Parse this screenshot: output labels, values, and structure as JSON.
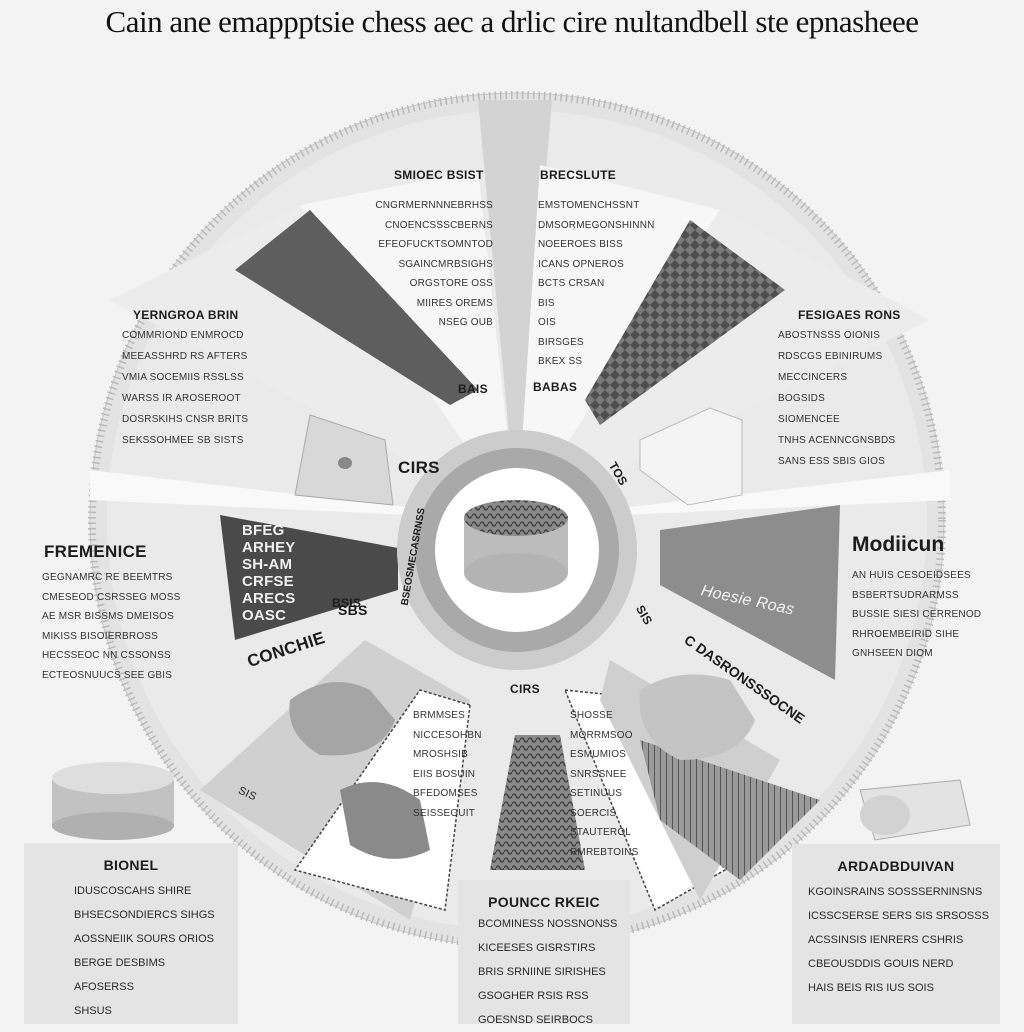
{
  "title": "Cain ane emappptsie chess aec a drlic cire nultandbell ste epnasheee",
  "colors": {
    "bg": "#f3f3f3",
    "ring": "#e2e2e2",
    "dark": "#5a5a5a",
    "mid": "#9a9a9a",
    "light": "#d4d4d4"
  },
  "segments": {
    "top_left": {
      "label": "SMIOEC BSIST",
      "lines": [
        "CNGRMERNNNEBRHSS",
        "CNOENCSSSCBERNS",
        "EFEOFUCKTSOMNTOD",
        "SGAINCMRBSIGHS",
        "ORGSTORE OSS",
        "MIIRES OREMS",
        "NSEG OUB"
      ],
      "tag": "BAIS"
    },
    "top_right": {
      "label": "BRECSLUTE",
      "lines": [
        "EMSTOMENCHSSNT",
        "DMSORMEGONSHINNN",
        "NOEEROES BISS",
        "ICANS OPNEROS",
        "BCTS CRSAN",
        "BIS",
        "OIS",
        "BIRSGES",
        "BKEX SS"
      ],
      "tag": "BABAS"
    },
    "upper_left": {
      "label": "YERNGROA BRIN",
      "lines": [
        "COMMRIOND ENMROCD",
        "MEEASSHRD RS AFTERS",
        "VMIA SOCEMIIS RSSLSS",
        "WARSS IR AROSEROOT",
        "DOSRSKIHS CNSR BRITS",
        "SEKSSOHMEE SB SISTS"
      ],
      "tag": "CIRS"
    },
    "upper_right": {
      "label": "FESIGAES RONS",
      "lines": [
        "ABOSTNSSS OIONIS",
        "RDSCGS EBINIRUMS",
        "MECCINCERS",
        "BOGSIDS",
        "SIOMENCEE",
        "TNHS ACENNCGNSBDS",
        "SANS ESS SBIS GIOS"
      ],
      "tag": "TOS"
    },
    "left": {
      "label": "FREMENICE",
      "lines": [
        "GEGNAMRC RE BEEMTRS",
        "CMESEOD CSRSSEG MOSS",
        "AE MSR BISSMS DMEISOS",
        "MIKISS BISOIERBROSS",
        "HECSSEOC NN CSSONSS",
        "ECTEOSNUUCS SEE GBIS"
      ],
      "chalk": [
        "BFEG",
        "ARHEY",
        "SH-AM",
        "CRFSE",
        "ARECS",
        "OASC"
      ]
    },
    "right": {
      "label": "Modiicun",
      "lines": [
        "AN HUIS CESOEIDSEES",
        "BSBERTSUDRARMSS",
        "BUSSIE SIESI CERRENOD",
        "RHROEMBEIRID SIHE",
        "GNHSEEN DIOM"
      ],
      "tag": "C DASRONSSSOCNE",
      "script": "Hoesie Roas"
    },
    "bottom_left": {
      "label": "CONCHIE",
      "tag": "BSIS"
    },
    "bottom_center": {
      "tag": "CIRS"
    },
    "bottom_right": {
      "tag": "SIS"
    },
    "receipt_left": [
      "BRMMSES",
      "NICCESOHBN",
      "MROSHSIB",
      "EIIS BOSUIN",
      "BFEDOMSES",
      "SEISSEGUIT"
    ],
    "receipt_right": [
      "SHOSSE",
      "MORRMSOO",
      "ESMUMIOS",
      "SNRSSNEE",
      "SETINUUS",
      "SOERCIS",
      "STAUTEROL",
      "RMREBTOINS"
    ]
  },
  "ring_labels": {
    "left_vertical": "BSEOSMECASRNSS",
    "right_small": "SIS",
    "bottom_small": "SBS"
  },
  "boxes": {
    "left": {
      "title": "BIONEL",
      "lines": [
        "IDUSCOSCAHS SHIRE",
        "BHSECSONDIERCS SIHGS",
        "AOSSNEIIK SOURS ORIOS",
        "BERGE DESBIMS",
        "AFOSERSS",
        "SHSUS"
      ]
    },
    "center": {
      "title": "POUNCC RKEIC",
      "lines": [
        "BCOMINESS NOSSNONSS",
        "KICEESES GISRSTIRS",
        "BRIS SRNIINE SIRISHES",
        "GSOGHER RSIS RSS",
        "GOESNSD SEIRBOCS"
      ]
    },
    "right": {
      "title": "ARDADBDUIVAN",
      "lines": [
        "KGOINSRAINS SOSSSERNINSNS",
        "ICSSCSERSE SERS SIS SRSOSSS",
        "ACSSINSIS IENRERS CSHRIS",
        "CBEOUSDDIS GOUIS NERD",
        "HAIS BEIS RIS IUS SOIS"
      ]
    }
  }
}
